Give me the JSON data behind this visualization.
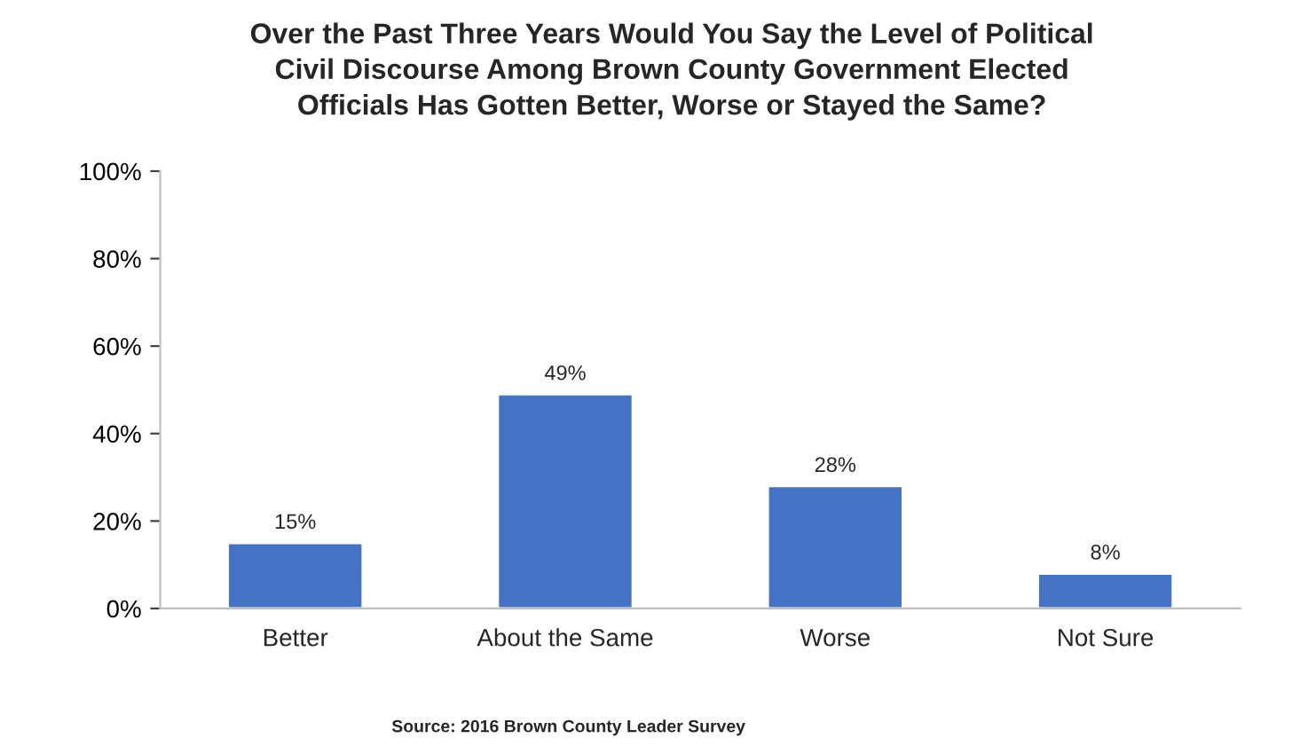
{
  "chart_data": {
    "type": "bar",
    "title": "Over the Past Three Years Would You Say the Level of Political\nCivil Discourse Among Brown County Government Elected\nOfficials Has Gotten Better, Worse or Stayed the Same?",
    "categories": [
      "Better",
      "About the Same",
      "Worse",
      "Not Sure"
    ],
    "values": [
      15,
      49,
      28,
      8
    ],
    "value_labels": [
      "15%",
      "49%",
      "28%",
      "8%"
    ],
    "color": "#4472c4",
    "ylim": [
      0,
      100
    ],
    "yticks": [
      {
        "value": 0,
        "label": "0%"
      },
      {
        "value": 20,
        "label": "20%"
      },
      {
        "value": 40,
        "label": "40%"
      },
      {
        "value": 60,
        "label": "60%"
      },
      {
        "value": 80,
        "label": "80%"
      },
      {
        "value": 100,
        "label": "100%"
      }
    ],
    "grid": false,
    "legend": false,
    "annotations": [
      "Source: 2016 Brown County Leader Survey"
    ]
  }
}
